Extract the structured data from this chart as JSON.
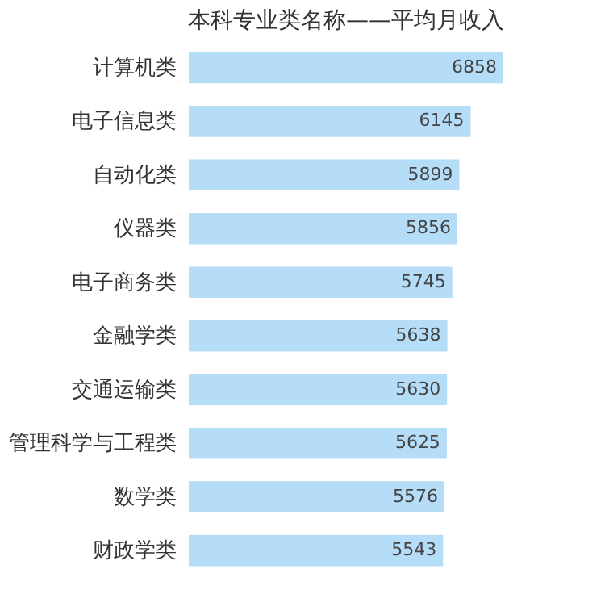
{
  "chart_data": {
    "type": "bar",
    "orientation": "horizontal",
    "title": "本科专业类名称——平均月收入",
    "categories": [
      "计算机类",
      "电子信息类",
      "自动化类",
      "仪器类",
      "电子商务类",
      "金融学类",
      "交通运输类",
      "管理科学与工程类",
      "数学类",
      "财政学类"
    ],
    "values": [
      6858,
      6145,
      5899,
      5856,
      5745,
      5638,
      5630,
      5625,
      5576,
      5543
    ],
    "color": "#b5ddf8",
    "data_labels": true
  }
}
